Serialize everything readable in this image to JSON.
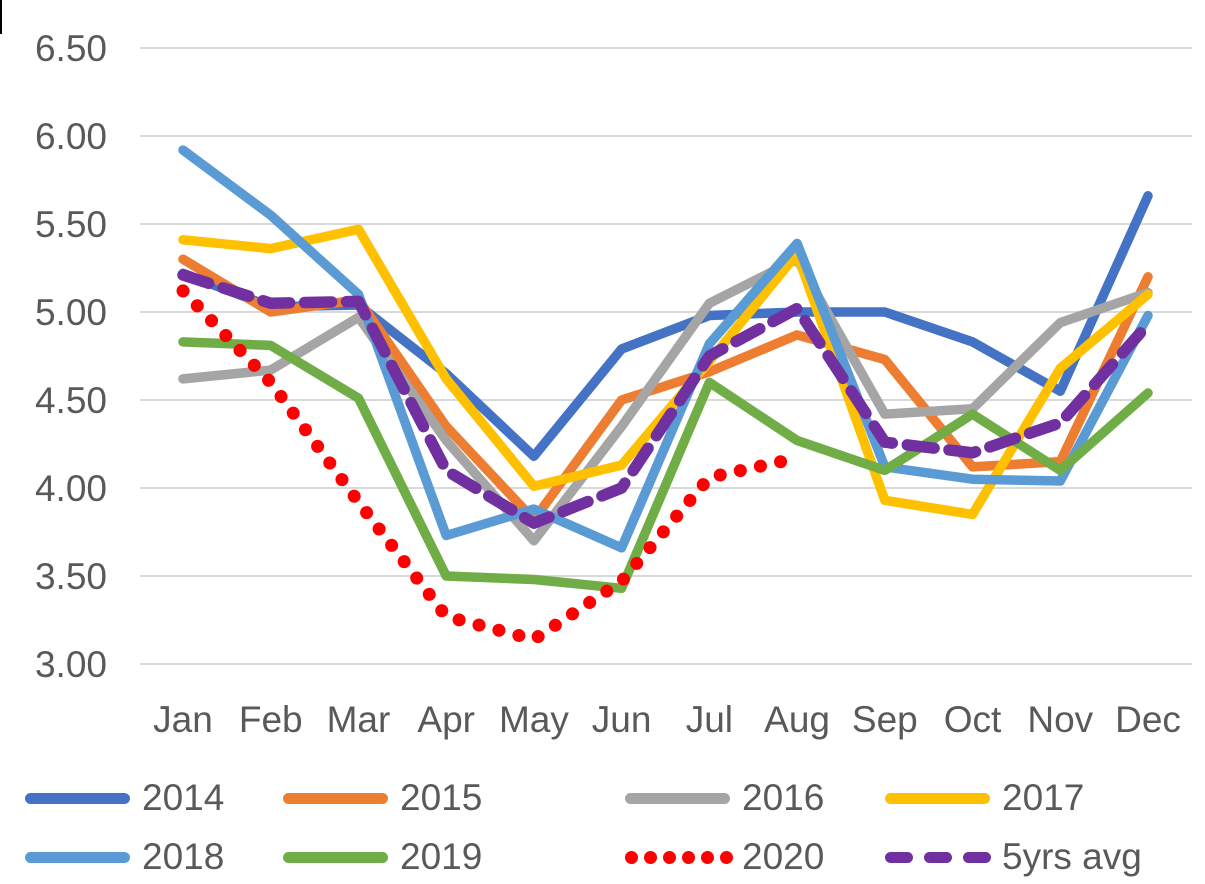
{
  "chart_data": {
    "type": "line",
    "title": "",
    "xlabel": "",
    "ylabel": "",
    "categories": [
      "Jan",
      "Feb",
      "Mar",
      "Apr",
      "May",
      "Jun",
      "Jul",
      "Aug",
      "Sep",
      "Oct",
      "Nov",
      "Dec"
    ],
    "y_axis": {
      "min": 3.0,
      "max": 6.5,
      "step": 0.5,
      "tick_labels": [
        "6.50",
        "6.00",
        "5.50",
        "5.00",
        "4.50",
        "4.00",
        "3.50",
        "3.00"
      ]
    },
    "grid": "horizontal",
    "legend_position": "bottom",
    "series": [
      {
        "name": "2014",
        "color": "#4472C4",
        "style": "solid",
        "values": [
          5.22,
          5.03,
          5.04,
          4.65,
          4.18,
          4.79,
          4.98,
          5.0,
          5.0,
          4.83,
          4.55,
          5.66
        ]
      },
      {
        "name": "2015",
        "color": "#ED7D31",
        "style": "solid",
        "values": [
          5.3,
          5.0,
          5.07,
          4.35,
          3.82,
          4.5,
          4.66,
          4.87,
          4.73,
          4.12,
          4.15,
          5.2
        ]
      },
      {
        "name": "2016",
        "color": "#A5A5A5",
        "style": "solid",
        "values": [
          4.62,
          4.67,
          4.97,
          4.27,
          3.7,
          4.35,
          5.05,
          5.3,
          4.42,
          4.45,
          4.94,
          5.11
        ]
      },
      {
        "name": "2017",
        "color": "#FFC000",
        "style": "solid",
        "values": [
          5.41,
          5.36,
          5.47,
          4.62,
          4.01,
          4.13,
          4.72,
          5.33,
          3.93,
          3.85,
          4.68,
          5.1
        ]
      },
      {
        "name": "2018",
        "color": "#5B9BD5",
        "style": "solid",
        "values": [
          5.92,
          5.55,
          5.1,
          3.73,
          3.88,
          3.66,
          4.82,
          5.39,
          4.12,
          4.05,
          4.04,
          4.98
        ]
      },
      {
        "name": "2019",
        "color": "#70AD47",
        "style": "solid",
        "values": [
          4.83,
          4.81,
          4.51,
          3.5,
          3.48,
          3.43,
          4.6,
          4.27,
          4.1,
          4.42,
          4.1,
          4.54
        ]
      },
      {
        "name": "2020",
        "color": "#FF0000",
        "style": "dotted",
        "values": [
          5.12,
          4.6,
          3.92,
          3.27,
          3.14,
          3.47,
          4.06,
          4.17,
          null,
          null,
          null,
          null
        ]
      },
      {
        "name": "5yrs avg",
        "color": "#7030A0",
        "style": "dashed",
        "values": [
          5.21,
          5.05,
          5.06,
          4.1,
          3.8,
          4.0,
          4.75,
          5.02,
          4.26,
          4.2,
          4.37,
          4.93
        ]
      }
    ]
  },
  "colors": {
    "gridline": "#D9D9D9",
    "axis_text": "#595959",
    "background": "#FFFFFF"
  }
}
